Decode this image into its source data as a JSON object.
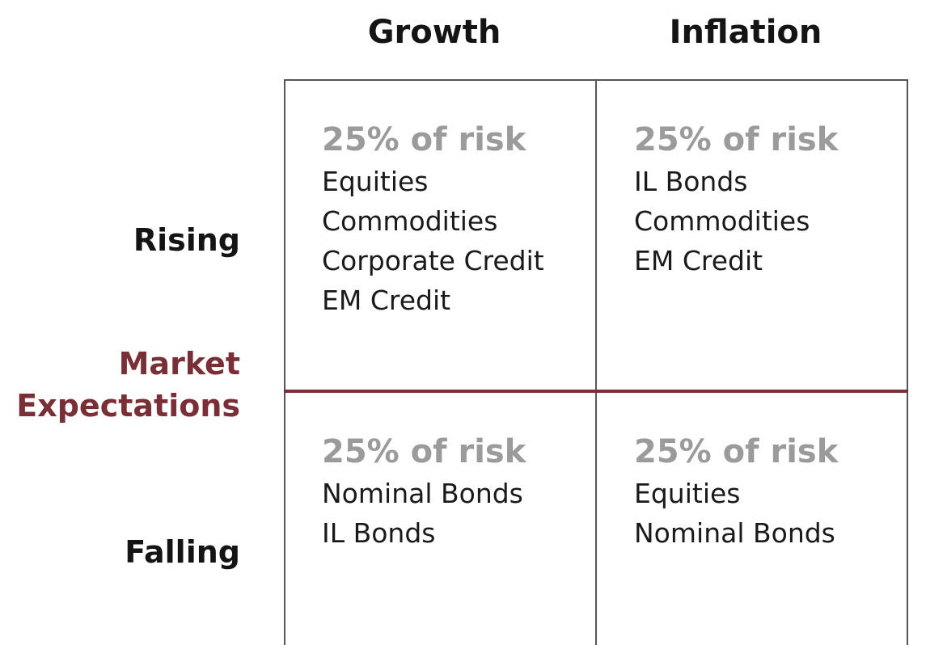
{
  "columns": {
    "growth": "Growth",
    "inflation": "Inflation"
  },
  "rows": {
    "rising": "Rising",
    "falling": "Falling"
  },
  "axis_label": {
    "line1": "Market",
    "line2": "Expectations"
  },
  "cells": {
    "rising_growth": {
      "risk": "25% of risk",
      "assets": [
        "Equities",
        "Commodities",
        "Corporate Credit",
        "EM Credit"
      ]
    },
    "rising_inflation": {
      "risk": "25% of risk",
      "assets": [
        "IL Bonds",
        "Commodities",
        "EM Credit"
      ]
    },
    "falling_growth": {
      "risk": "25% of risk",
      "assets": [
        "Nominal Bonds",
        "IL Bonds"
      ]
    },
    "falling_inflation": {
      "risk": "25% of risk",
      "assets": [
        "Equities",
        "Nominal Bonds"
      ]
    }
  },
  "colors": {
    "accent": "#7a2e36",
    "risk_text": "#9b9b9b",
    "text": "#1a1a1a",
    "grid": "#555555"
  }
}
